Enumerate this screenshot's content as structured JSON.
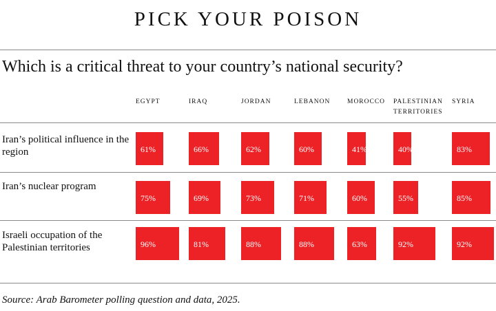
{
  "title": "PICK YOUR POISON",
  "question": "Which is a critical threat to your country’s national security?",
  "source": "Source: Arab Barometer polling question and data, 2025.",
  "chart_data": {
    "type": "table",
    "title": "PICK YOUR POISON",
    "subtitle": "Which is a critical threat to your country’s national security?",
    "categories": [
      "EGYPT",
      "IRAQ",
      "JORDAN",
      "LEBANON",
      "MOROCCO",
      "PALESTINIAN TERRITORIES",
      "SYRIA"
    ],
    "series": [
      {
        "name": "Iran’s political influence in the region",
        "values": [
          61,
          66,
          62,
          60,
          41,
          40,
          83
        ]
      },
      {
        "name": "Iran’s nuclear program",
        "values": [
          75,
          69,
          73,
          71,
          60,
          55,
          85
        ]
      },
      {
        "name": "Israeli occupation of the Palestinian territories",
        "values": [
          96,
          81,
          88,
          88,
          63,
          92,
          92
        ]
      }
    ],
    "unit": "%",
    "color": "#ec2227"
  }
}
